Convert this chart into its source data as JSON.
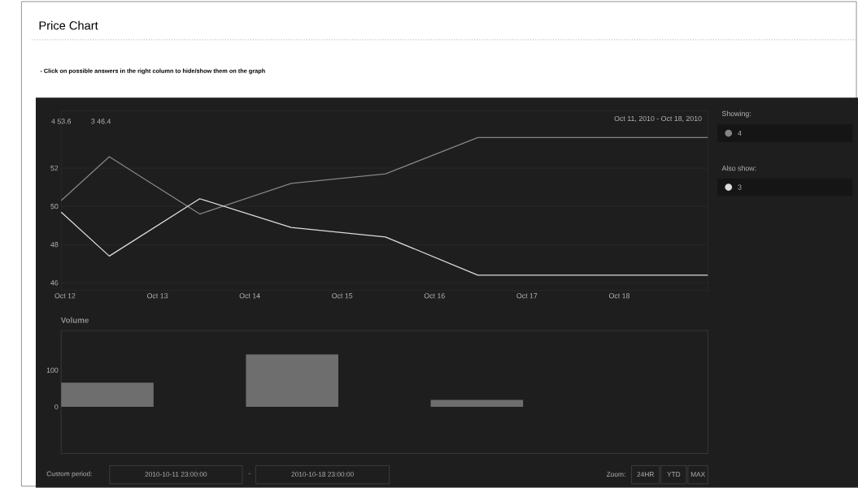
{
  "chart_data": [
    {
      "type": "line",
      "title": "Price Chart",
      "subtitle": "- Click on possible answers in the right column to hide/show them on the graph",
      "x": [
        "2010-10-11T23:00",
        "2010-10-12T11:30",
        "2010-10-13T11:00",
        "2010-10-14T10:45",
        "2010-10-15T11:15",
        "2010-10-16T11:15",
        "2010-10-18T23:00"
      ],
      "series": [
        {
          "name": "4",
          "color": "#858585",
          "values": [
            50.3,
            52.6,
            49.6,
            51.2,
            51.7,
            53.6,
            53.6
          ]
        },
        {
          "name": "3",
          "color": "#dcdcdc",
          "values": [
            49.7,
            47.4,
            50.4,
            48.9,
            48.4,
            46.4,
            46.4
          ]
        }
      ],
      "xlim": [
        "2010-10-11T23:00",
        "2010-10-18T23:00"
      ],
      "xticks": [
        {
          "value": "2010-10-12",
          "label": "Oct 12"
        },
        {
          "value": "2010-10-13",
          "label": "Oct 13"
        },
        {
          "value": "2010-10-14",
          "label": "Oct 14"
        },
        {
          "value": "2010-10-15",
          "label": "Oct 15"
        },
        {
          "value": "2010-10-16",
          "label": "Oct 16"
        },
        {
          "value": "2010-10-17",
          "label": "Oct 17"
        },
        {
          "value": "2010-10-18",
          "label": "Oct 18"
        }
      ],
      "ylim": [
        45.6,
        55
      ],
      "yticks": [
        46,
        48,
        50,
        52
      ],
      "grid": "y",
      "legend": "right",
      "annotations": [
        "4 53.6",
        "3 46.4",
        "Oct 11, 2010 - Oct 18, 2010",
        "Showing:",
        "Also show:"
      ]
    },
    {
      "type": "bar",
      "title": "Volume",
      "x": [
        "2010-10-12T11:00",
        "2010-10-13T11:00",
        "2010-10-14T11:00",
        "2010-10-15T11:00",
        "2010-10-16T11:00",
        "2010-10-17T11:00",
        "2010-10-18T11:00"
      ],
      "values": [
        66,
        null,
        143,
        null,
        19,
        0,
        0
      ],
      "color": "#6e6e6e",
      "xlim": [
        "2010-10-11T23:00",
        "2010-10-18T23:00"
      ],
      "ylim": [
        -127,
        208
      ],
      "yticks": [
        0,
        100
      ],
      "tick_labels": "y",
      "annotations": [
        "Custom period:",
        "2010-10-11 23:00:00",
        "-",
        "2010-10-18 23:00:00",
        "Zoom:",
        "24HR",
        "YTD",
        "MAX"
      ]
    }
  ]
}
